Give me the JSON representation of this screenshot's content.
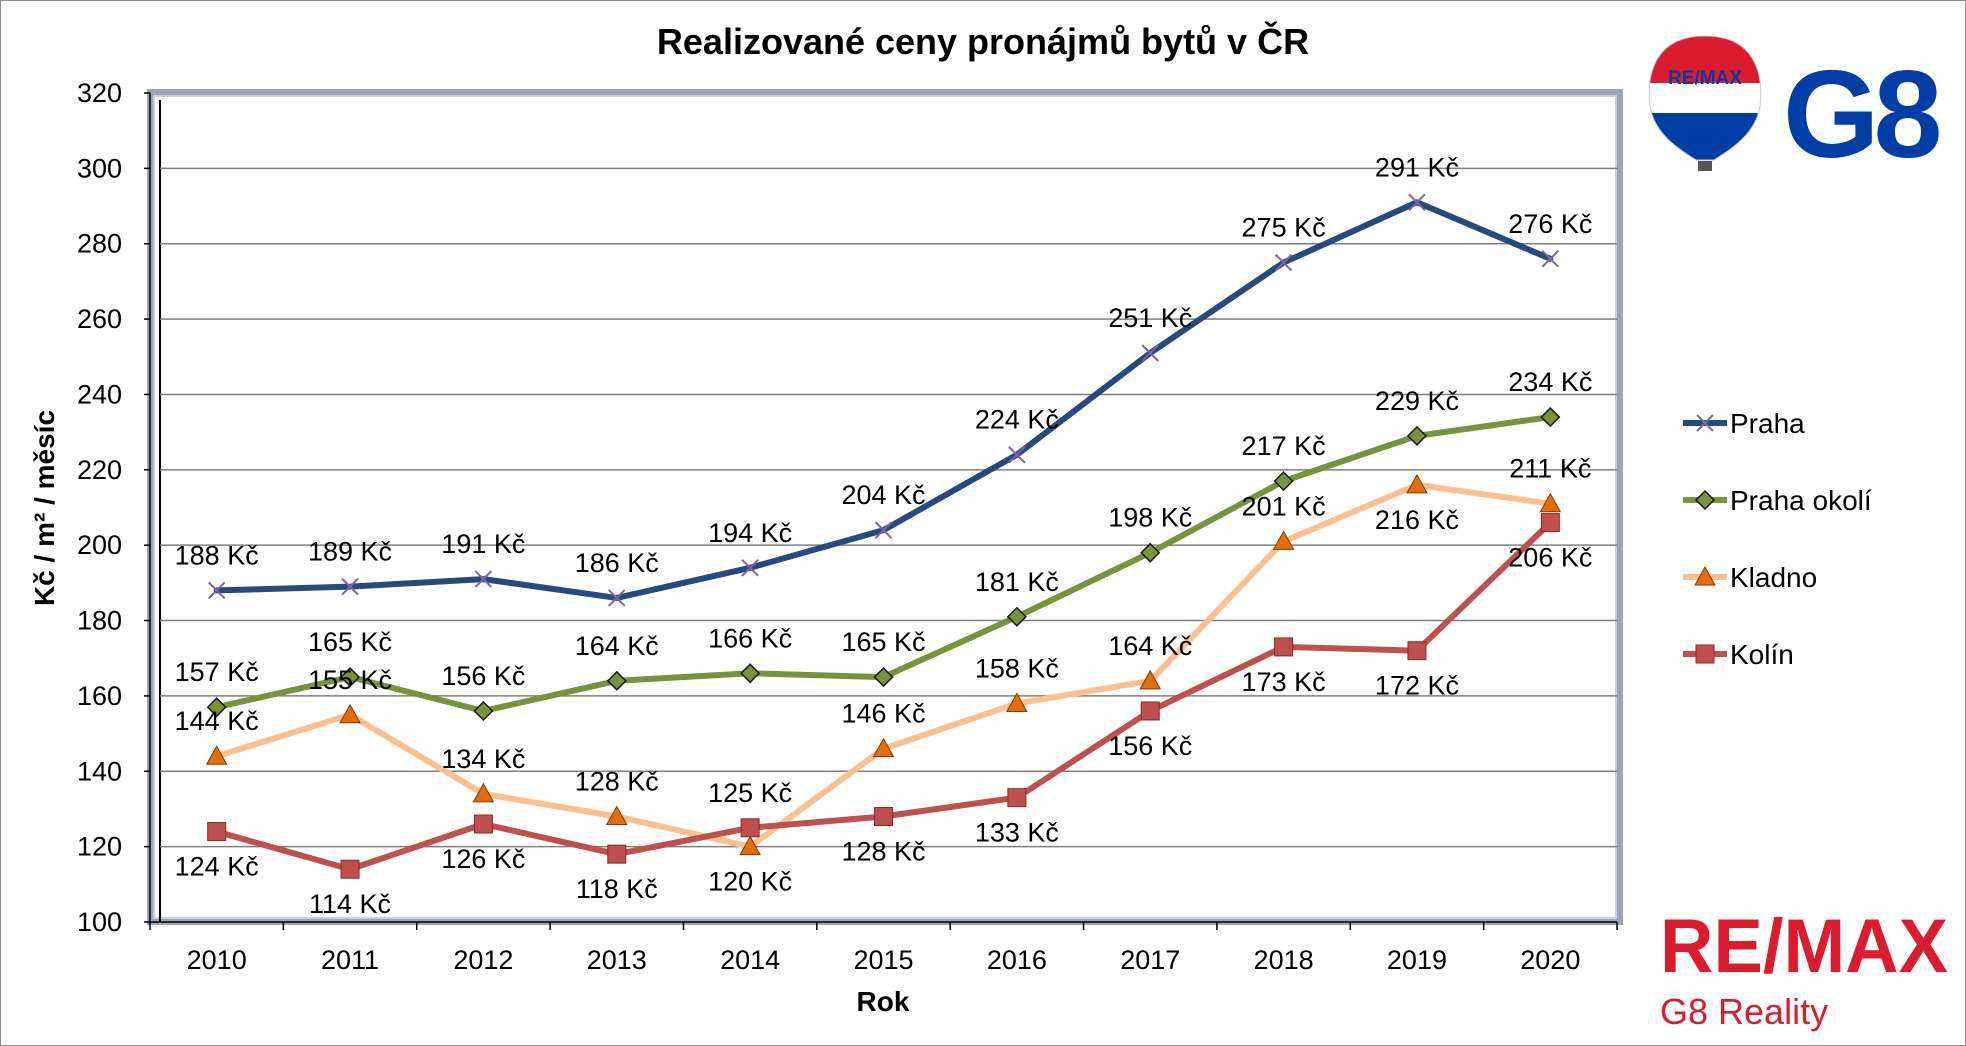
{
  "chart_data": {
    "type": "line",
    "title": "Realizované ceny pronájmů bytů v ČR",
    "xlabel": "Rok",
    "ylabel": "Kč / m² / měsíc",
    "categories": [
      "2010",
      "2011",
      "2012",
      "2013",
      "2014",
      "2015",
      "2016",
      "2017",
      "2018",
      "2019",
      "2020"
    ],
    "ylim": [
      100,
      320
    ],
    "ytick_step": 20,
    "grid": true,
    "legend_position": "right",
    "series": [
      {
        "name": "Praha",
        "color": "#254a7e",
        "marker": "x",
        "values": [
          188,
          189,
          191,
          186,
          194,
          204,
          224,
          251,
          275,
          291,
          276
        ],
        "labels": [
          "188 Kč",
          "189 Kč",
          "191 Kč",
          "186 Kč",
          "194 Kč",
          "204 Kč",
          "224 Kč",
          "251 Kč",
          "275 Kč",
          "291 Kč",
          "276 Kč"
        ]
      },
      {
        "name": "Praha okolí",
        "color": "#77933c",
        "marker": "diamond",
        "values": [
          157,
          165,
          156,
          164,
          166,
          165,
          181,
          198,
          217,
          229,
          234
        ],
        "labels": [
          "157 Kč",
          "165 Kč",
          "156 Kč",
          "164 Kč",
          "166 Kč",
          "165 Kč",
          "181 Kč",
          "198 Kč",
          "217 Kč",
          "229 Kč",
          "234 Kč"
        ]
      },
      {
        "name": "Kladno",
        "color": "#fac090",
        "marker_color": "#e46c0a",
        "marker": "triangle",
        "values": [
          144,
          155,
          134,
          128,
          120,
          146,
          158,
          164,
          201,
          216,
          211
        ],
        "labels": [
          "144 Kč",
          "155 Kč",
          "134 Kč",
          "128 Kč",
          "120 Kč",
          "146 Kč",
          "158 Kč",
          "164 Kč",
          "201 Kč",
          "216 Kč",
          "211 Kč"
        ]
      },
      {
        "name": "Kolín",
        "color": "#c0504d",
        "marker": "square",
        "values": [
          124,
          114,
          126,
          118,
          125,
          128,
          133,
          156,
          173,
          172,
          206
        ],
        "labels": [
          "124 Kč",
          "114 Kč",
          "126 Kč",
          "118 Kč",
          "125 Kč",
          "128 Kč",
          "133 Kč",
          "156 Kč",
          "173 Kč",
          "172 Kč",
          "206 Kč"
        ]
      }
    ]
  },
  "branding": {
    "balloon_text": "RE/MAX",
    "g8_text": "G8",
    "remax_text": "RE/MAX",
    "reality_text": "G8 Reality",
    "red": "#dc1c2e",
    "blue": "#003da5"
  }
}
